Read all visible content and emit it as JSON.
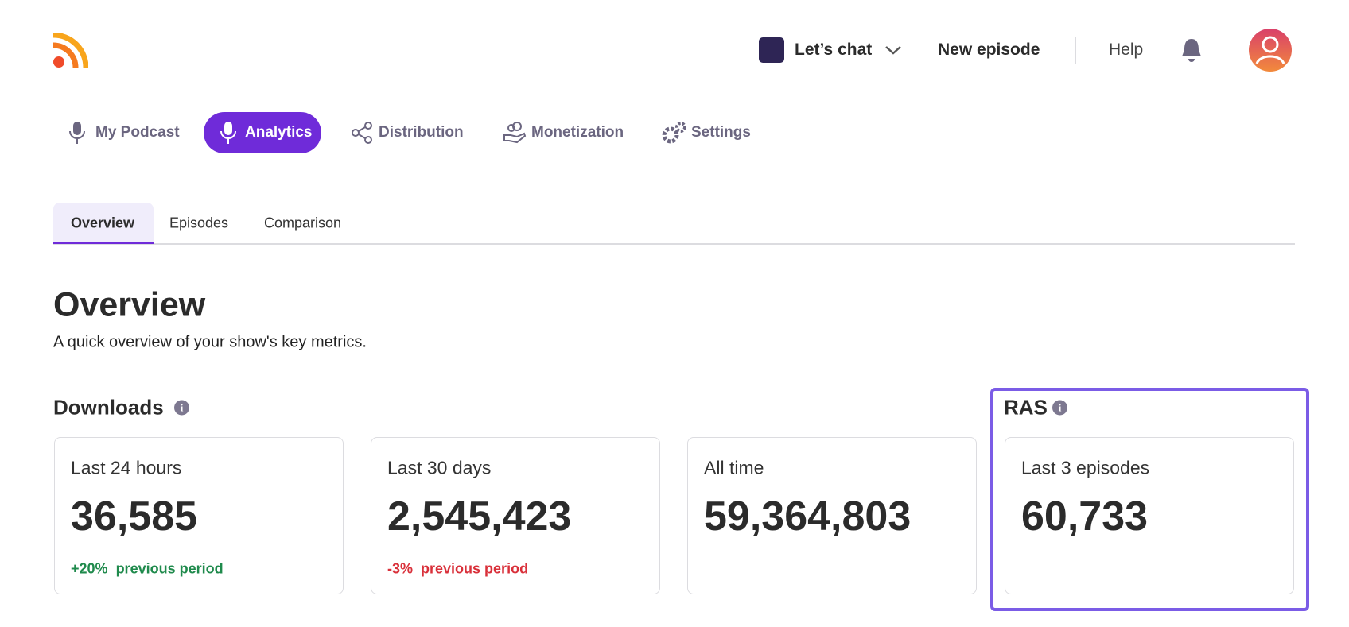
{
  "header": {
    "show_name": "Let’s chat",
    "new_episode": "New episode",
    "help": "Help"
  },
  "nav": [
    "My Podcast",
    "Analytics",
    "Distribution",
    "Monetization",
    "Settings"
  ],
  "subtabs": [
    "Overview",
    "Episodes",
    "Comparison"
  ],
  "overview": {
    "title": "Overview",
    "description": "A quick overview of your show's key metrics."
  },
  "downloads": {
    "title": "Downloads",
    "cards": [
      {
        "label": "Last 24 hours",
        "value": "36,585",
        "change": "+20%",
        "change_label": "previous period"
      },
      {
        "label": "Last 30 days",
        "value": "2,545,423",
        "change": "-3%",
        "change_label": "previous period"
      },
      {
        "label": "All time",
        "value": "59,364,803"
      }
    ]
  },
  "ras": {
    "title": "RAS",
    "cards": [
      {
        "label": "Last 3 episodes",
        "value": "60,733"
      }
    ]
  }
}
